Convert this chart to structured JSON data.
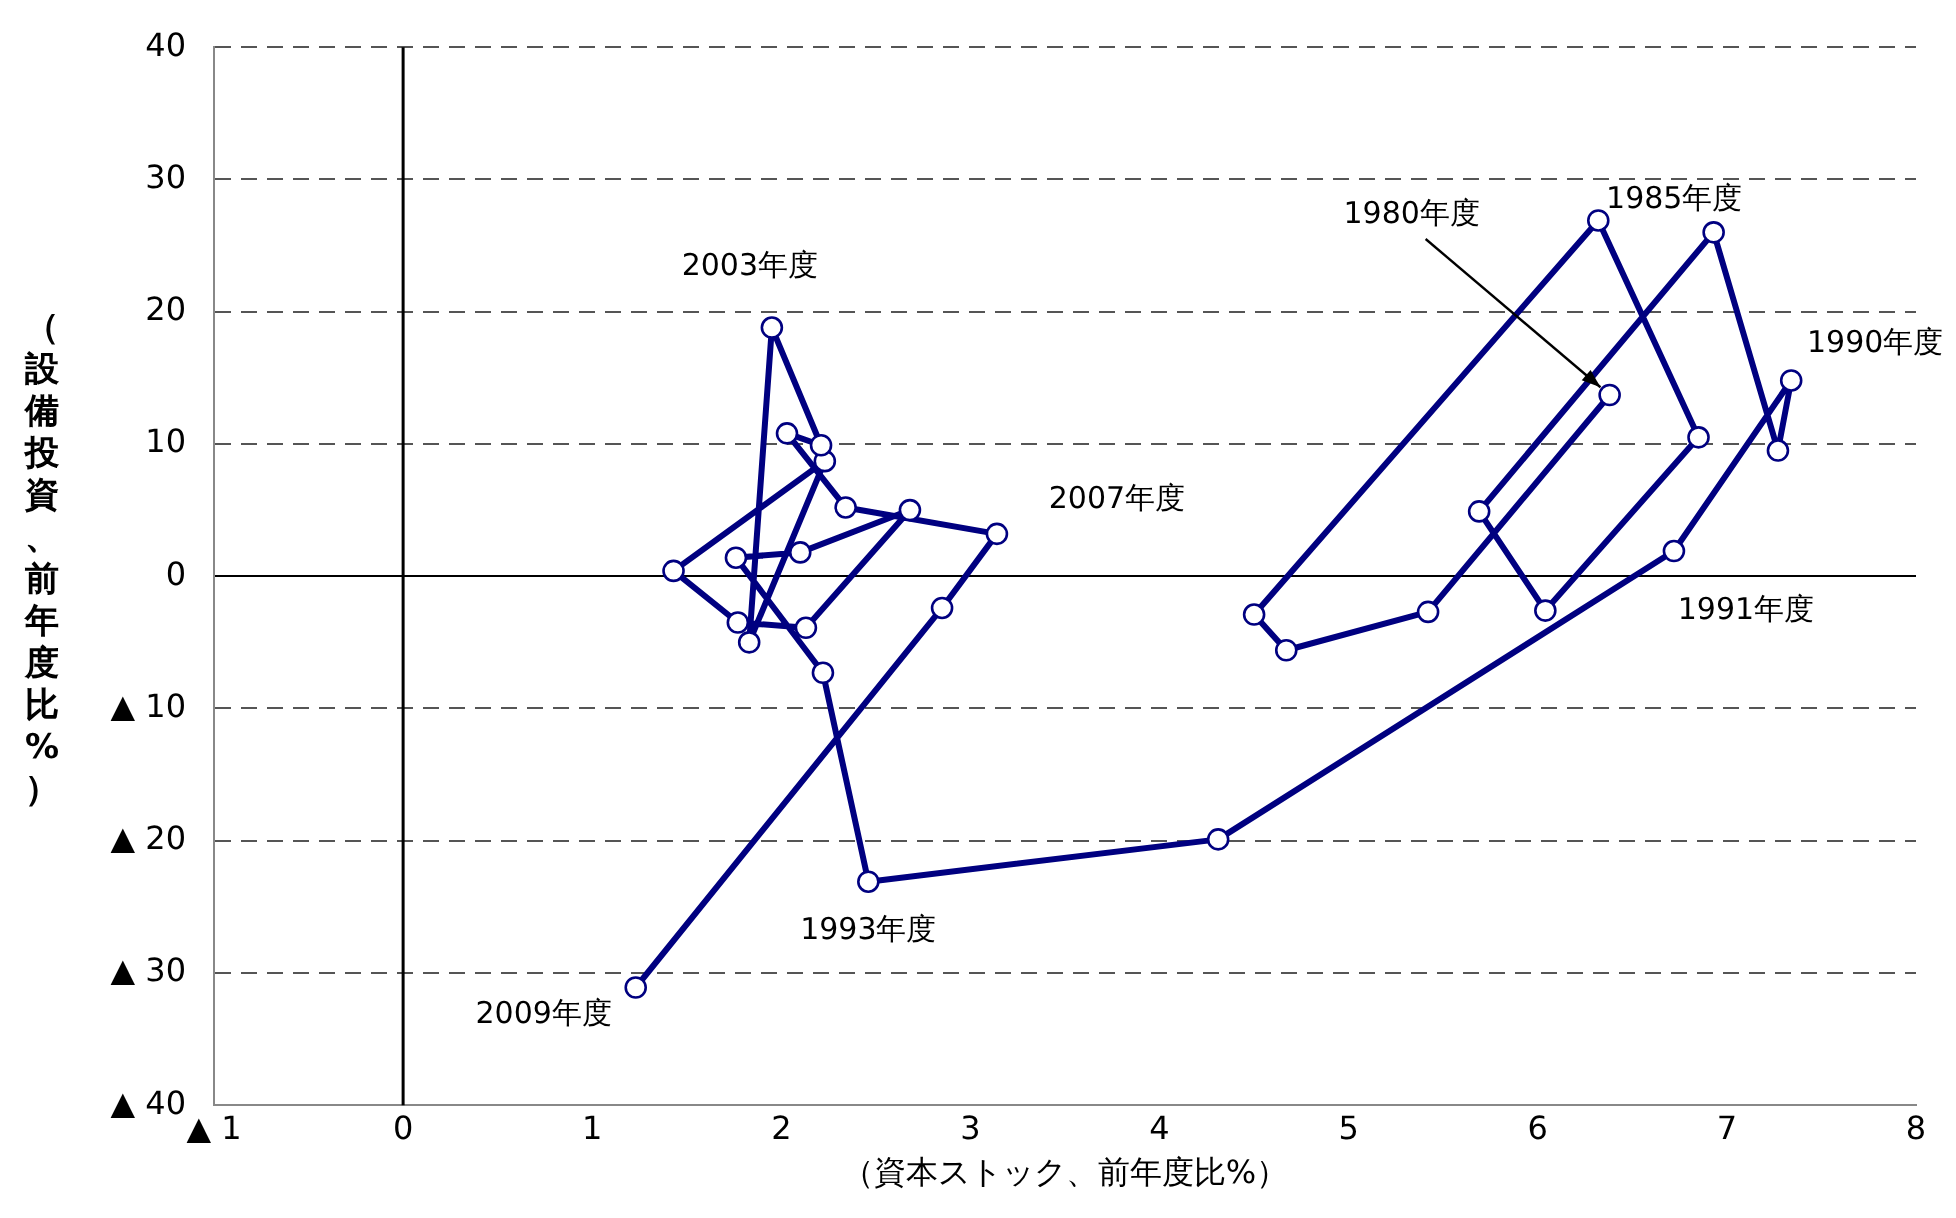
{
  "chart_data": {
    "type": "line",
    "xlabel": "（資本ストック、前年度比%）",
    "ylabel": "（設備投資、前年度比%）",
    "xlim": [
      -1,
      8
    ],
    "xticks": [
      {
        "value": -1,
        "label": "▲ 1"
      },
      0,
      1,
      2,
      3,
      4,
      5,
      6,
      7,
      8
    ],
    "ylim": [
      -40,
      40
    ],
    "yticks": [
      {
        "value": -40,
        "label": "▲ 40"
      },
      {
        "value": -30,
        "label": "▲ 30"
      },
      {
        "value": -20,
        "label": "▲ 20"
      },
      {
        "value": -10,
        "label": "▲ 10"
      },
      0,
      10,
      20,
      30,
      40
    ],
    "grid": "y",
    "legend": false,
    "marker": "circle",
    "line_style": "solid",
    "ref_lines": [
      {
        "axis": "x",
        "value": 0,
        "color": "#000000"
      }
    ],
    "series": [
      {
        "color": "#000080",
        "x": [
          6.38,
          5.42,
          4.67,
          4.5,
          6.32,
          6.85,
          6.04,
          5.69,
          6.93,
          7.27,
          7.34,
          6.72,
          4.31,
          2.46,
          2.22,
          1.76,
          2.1,
          2.68,
          2.13,
          1.77,
          1.43,
          2.23,
          1.83,
          1.95,
          2.21,
          2.03,
          2.34,
          3.14,
          2.85,
          1.23
        ],
        "values": [
          13.7,
          -2.7,
          -5.6,
          -2.9,
          26.9,
          10.5,
          -2.6,
          4.9,
          26.0,
          9.5,
          14.8,
          1.9,
          -19.9,
          -23.1,
          -7.3,
          1.4,
          1.8,
          5.0,
          -3.9,
          -3.5,
          0.4,
          8.7,
          -5.0,
          18.8,
          9.9,
          10.8,
          5.2,
          3.2,
          -2.4,
          -31.1
        ]
      }
    ],
    "annotations": [
      {
        "text": "1980年度",
        "x": 6.38,
        "y": 13.7
      },
      {
        "text": "1985年度",
        "x": 6.32,
        "y": 26.9
      },
      {
        "text": "1990年度",
        "x": 7.34,
        "y": 14.8
      },
      {
        "text": "1991年度",
        "x": 6.72,
        "y": 1.9
      },
      {
        "text": "1993年度",
        "x": 2.46,
        "y": -23.1
      },
      {
        "text": "2003年度",
        "x": 1.95,
        "y": 18.8
      },
      {
        "text": "2007年度",
        "x": 3.14,
        "y": 3.2
      },
      {
        "text": "2009年度",
        "x": 1.23,
        "y": -31.1
      }
    ]
  }
}
